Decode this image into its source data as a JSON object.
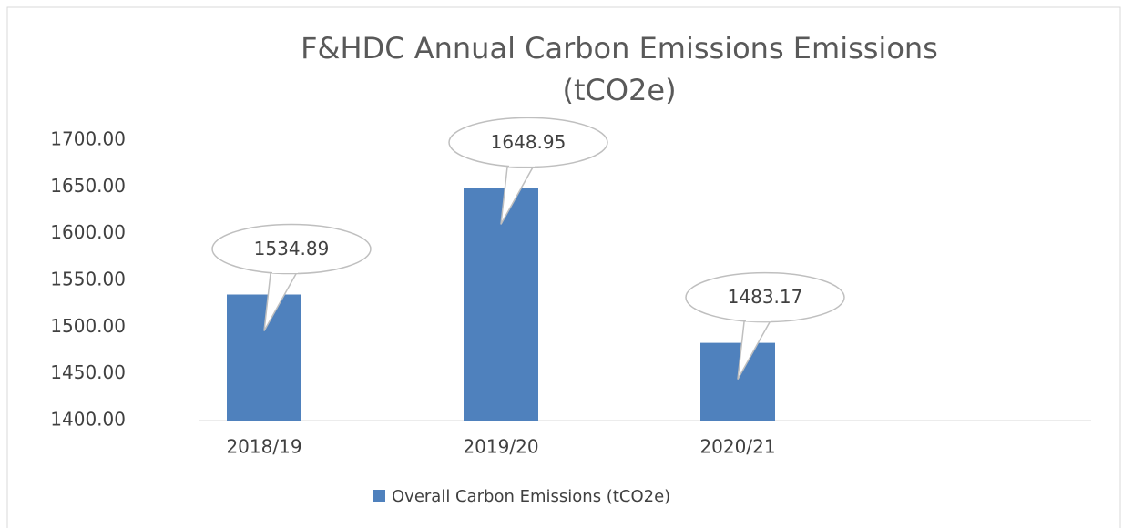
{
  "chart_data": {
    "type": "bar",
    "title": "F&HDC Annual Carbon Emissions  Emissions (tCO2e)",
    "categories": [
      "2018/19",
      "2019/20",
      "2020/21"
    ],
    "series": [
      {
        "name": "Overall Carbon Emissions (tCO2e)",
        "color": "#4f81bd",
        "values": [
          1534.89,
          1648.95,
          1483.17
        ]
      }
    ],
    "ylim": [
      1400,
      1700
    ],
    "yticks": [
      {
        "value": 1400,
        "label": "1400.00"
      },
      {
        "value": 1450,
        "label": "1450.00"
      },
      {
        "value": 1500,
        "label": "1500.00"
      },
      {
        "value": 1550,
        "label": "1550.00"
      },
      {
        "value": 1600,
        "label": "1600.00"
      },
      {
        "value": 1650,
        "label": "1650.00"
      },
      {
        "value": 1700,
        "label": "1700.00"
      }
    ],
    "legend": "bottom"
  }
}
